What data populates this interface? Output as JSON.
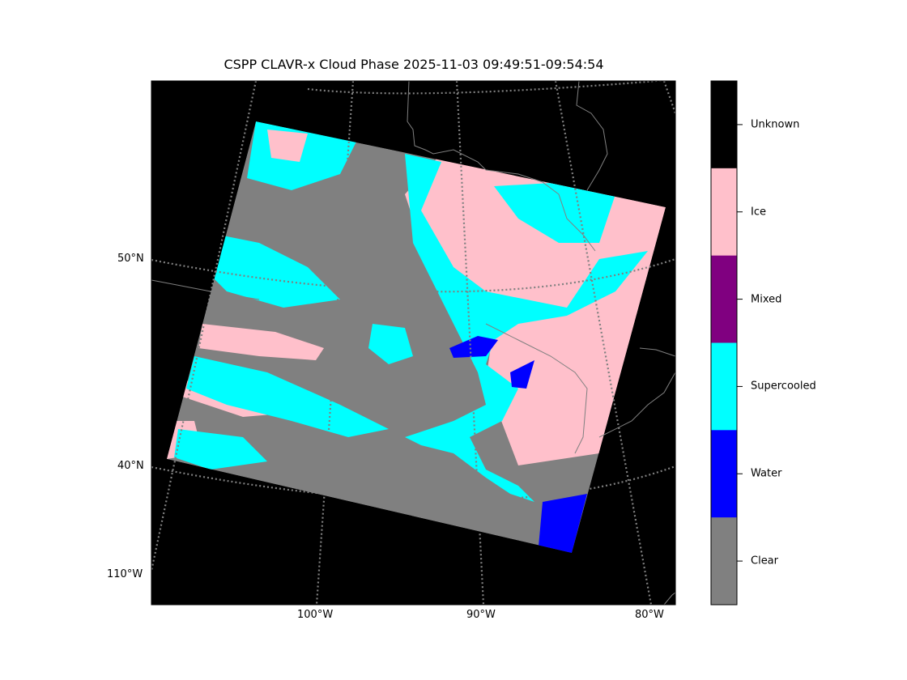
{
  "title": "CSPP CLAVR-x Cloud Phase 2025-11-03 09:49:51-09:54:54",
  "lat_labels": [
    "50°N",
    "40°N"
  ],
  "lon_labels": [
    "110°W",
    "100°W",
    "90°W",
    "80°W"
  ],
  "colorbar": {
    "categories": [
      {
        "label": "Unknown",
        "color": "#000000"
      },
      {
        "label": "Ice",
        "color": "#ffc0cb"
      },
      {
        "label": "Mixed",
        "color": "#800080"
      },
      {
        "label": "Supercooled",
        "color": "#00ffff"
      },
      {
        "label": "Water",
        "color": "#0000ff"
      },
      {
        "label": "Clear",
        "color": "#808080"
      }
    ]
  }
}
